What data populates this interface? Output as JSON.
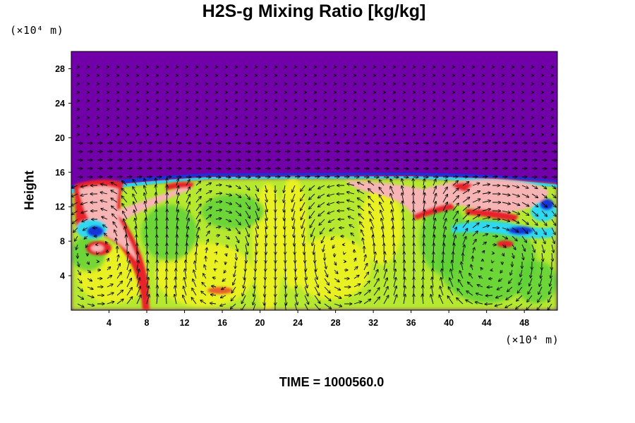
{
  "chart_data": {
    "type": "heatmap",
    "title": "H2S-g Mixing Ratio [kg/kg]",
    "xlabel": "",
    "ylabel": "Height",
    "x_unit": "(×10⁴ m)",
    "y_unit": "(×10⁴ m)",
    "xlim": [
      0,
      51.5
    ],
    "ylim": [
      0,
      30
    ],
    "x_ticks": [
      4,
      8,
      12,
      16,
      20,
      24,
      28,
      32,
      36,
      40,
      44,
      48
    ],
    "y_ticks": [
      4,
      8,
      12,
      16,
      20,
      24,
      28
    ],
    "background_color": "#7200a8",
    "colors": {
      "upper": "#7200a8",
      "base": "#b5e82e",
      "yellow": "#f2f21e",
      "green": "#5fd13a",
      "pink": "#f6b4b4",
      "red": "#e8242c",
      "cyan": "#2ed8f0",
      "blue": "#1236d8"
    },
    "vector_field": true
  },
  "footer": "TIME = 1000560.0"
}
